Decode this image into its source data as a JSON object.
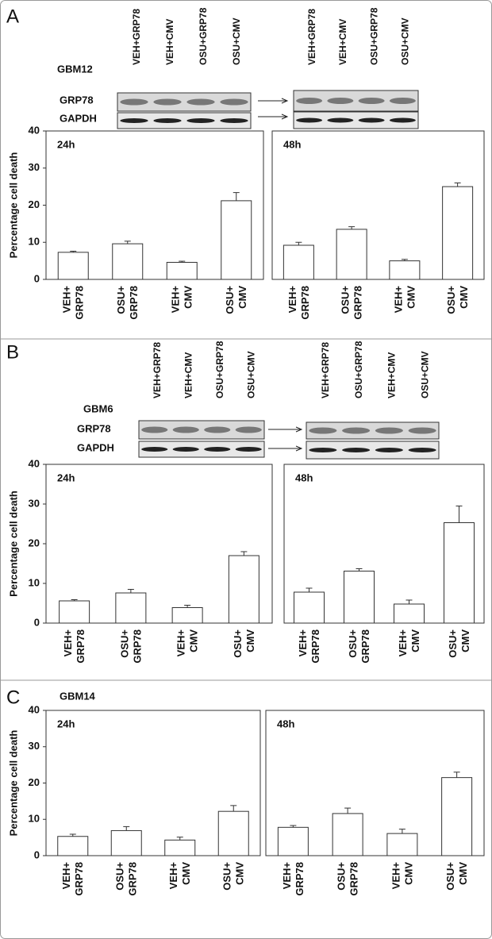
{
  "panels": [
    {
      "letter": "A",
      "cell_line": "GBM12",
      "rows": [
        "GRP78",
        "GAPDH"
      ],
      "blots": [
        {
          "lanes": [
            "VEH+GRP78",
            "VEH+CMV",
            "OSU+GRP78",
            "OSU+CMV"
          ]
        },
        {
          "lanes": [
            "VEH+GRP78",
            "VEH+CMV",
            "OSU+GRP78",
            "OSU+CMV"
          ]
        }
      ]
    },
    {
      "letter": "B",
      "cell_line": "GBM6",
      "rows": [
        "GRP78",
        "GAPDH"
      ],
      "blots": [
        {
          "lanes": [
            "VEH+GRP78",
            "VEH+CMV",
            "OSU+GRP78",
            "OSU+CMV"
          ]
        },
        {
          "lanes": [
            "VEH+GRP78",
            "OSU+GRP78",
            "VEH+CMV",
            "OSU+CMV"
          ]
        }
      ]
    },
    {
      "letter": "C",
      "cell_line": "GBM14"
    }
  ],
  "chart_data": [
    {
      "type": "bar",
      "title": "24h",
      "ylabel": "Percentage cell death",
      "categories": [
        [
          "VEH+",
          "GRP78"
        ],
        [
          "OSU+",
          "GRP78"
        ],
        [
          "VEH+",
          "CMV"
        ],
        [
          "OSU+",
          "CMV"
        ]
      ],
      "values": [
        7.3,
        9.6,
        4.6,
        21.2
      ],
      "errors": [
        0.3,
        0.7,
        0.3,
        2.2
      ],
      "ylim": [
        0,
        40
      ],
      "yticks": [
        0,
        10,
        20,
        30,
        40
      ],
      "color": "#ffffff"
    },
    {
      "type": "bar",
      "title": "48h",
      "categories": [
        [
          "VEH+",
          "GRP78"
        ],
        [
          "OSU+",
          "GRP78"
        ],
        [
          "VEH+",
          "CMV"
        ],
        [
          "OSU+",
          "CMV"
        ]
      ],
      "values": [
        9.2,
        13.5,
        5.0,
        25.0
      ],
      "errors": [
        0.8,
        0.7,
        0.4,
        1.0
      ],
      "ylim": [
        0,
        40
      ],
      "color": "#ffffff"
    },
    {
      "type": "bar",
      "title": "24h",
      "ylabel": "Percentage cell death",
      "categories": [
        [
          "VEH+",
          "GRP78"
        ],
        [
          "OSU+",
          "GRP78"
        ],
        [
          "VEH+",
          "CMV"
        ],
        [
          "OSU+",
          "CMV"
        ]
      ],
      "values": [
        5.6,
        7.6,
        3.9,
        17.0
      ],
      "errors": [
        0.3,
        0.9,
        0.6,
        1.0
      ],
      "ylim": [
        0,
        40
      ],
      "yticks": [
        0,
        10,
        20,
        30,
        40
      ],
      "color": "#ffffff"
    },
    {
      "type": "bar",
      "title": "48h",
      "categories": [
        [
          "VEH+",
          "GRP78"
        ],
        [
          "OSU+",
          "GRP78"
        ],
        [
          "VEH+",
          "CMV"
        ],
        [
          "OSU+",
          "CMV"
        ]
      ],
      "values": [
        7.8,
        13.1,
        4.8,
        25.3
      ],
      "errors": [
        1.0,
        0.6,
        1.0,
        4.2
      ],
      "ylim": [
        0,
        40
      ],
      "color": "#ffffff"
    },
    {
      "type": "bar",
      "title": "24h",
      "ylabel": "Percentage cell death",
      "categories": [
        [
          "VEH+",
          "GRP78"
        ],
        [
          "OSU+",
          "GRP78"
        ],
        [
          "VEH+",
          "CMV"
        ],
        [
          "OSU+",
          "CMV"
        ]
      ],
      "values": [
        5.3,
        6.9,
        4.3,
        12.2
      ],
      "errors": [
        0.6,
        1.1,
        0.8,
        1.6
      ],
      "ylim": [
        0,
        40
      ],
      "yticks": [
        0,
        10,
        20,
        30,
        40
      ],
      "color": "#ffffff"
    },
    {
      "type": "bar",
      "title": "48h",
      "categories": [
        [
          "VEH+",
          "GRP78"
        ],
        [
          "OSU+",
          "GRP78"
        ],
        [
          "VEH+",
          "CMV"
        ],
        [
          "OSU+",
          "CMV"
        ]
      ],
      "values": [
        7.8,
        11.6,
        6.1,
        21.5
      ],
      "errors": [
        0.5,
        1.5,
        1.2,
        1.5
      ],
      "ylim": [
        0,
        40
      ],
      "color": "#ffffff"
    }
  ]
}
